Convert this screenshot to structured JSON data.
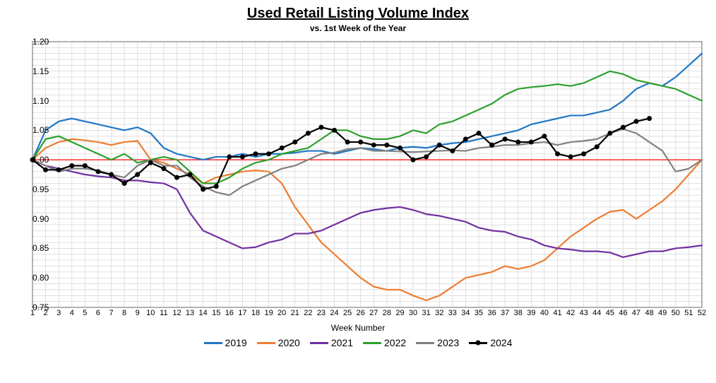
{
  "title": "Used Retail Listing Volume Index",
  "subtitle": "vs. 1st Week of the Year",
  "xlabel": "Week Number",
  "chart": {
    "type": "line",
    "xlim": [
      1,
      52
    ],
    "ylim": [
      0.75,
      1.2
    ],
    "ytick_step": 0.05,
    "xtick_step": 1,
    "background_color": "#ffffff",
    "grid_color": "#d9d9d9",
    "axis_color": "#7f7f7f",
    "baseline_color": "#ff0000",
    "line_width": 2.2,
    "marker_radius": 3.5,
    "title_fontsize": 20,
    "subtitle_fontsize": 12,
    "label_fontsize": 12,
    "tick_fontsize": 12,
    "series": [
      {
        "name": "2019",
        "color": "#1f77c4",
        "markers": false,
        "values": [
          1.0,
          1.05,
          1.065,
          1.07,
          1.065,
          1.06,
          1.055,
          1.05,
          1.055,
          1.045,
          1.02,
          1.01,
          1.005,
          1.0,
          1.005,
          1.005,
          1.01,
          1.005,
          1.01,
          1.01,
          1.012,
          1.015,
          1.015,
          1.01,
          1.015,
          1.02,
          1.018,
          1.015,
          1.02,
          1.022,
          1.02,
          1.025,
          1.028,
          1.03,
          1.035,
          1.04,
          1.045,
          1.05,
          1.06,
          1.065,
          1.07,
          1.075,
          1.075,
          1.08,
          1.085,
          1.1,
          1.12,
          1.13,
          1.125,
          1.14,
          1.16,
          1.18
        ]
      },
      {
        "name": "2020",
        "color": "#ed7d31",
        "markers": false,
        "values": [
          1.0,
          1.02,
          1.03,
          1.035,
          1.033,
          1.03,
          1.025,
          1.03,
          1.032,
          1.0,
          0.995,
          0.985,
          0.975,
          0.96,
          0.97,
          0.975,
          0.98,
          0.982,
          0.98,
          0.96,
          0.92,
          0.89,
          0.86,
          0.84,
          0.82,
          0.8,
          0.785,
          0.78,
          0.78,
          0.77,
          0.762,
          0.77,
          0.785,
          0.8,
          0.805,
          0.81,
          0.82,
          0.815,
          0.82,
          0.83,
          0.85,
          0.87,
          0.885,
          0.9,
          0.912,
          0.915,
          0.9,
          0.915,
          0.93,
          0.95,
          0.975,
          1.0
        ]
      },
      {
        "name": "2021",
        "color": "#7030a0",
        "markers": false,
        "values": [
          1.0,
          0.99,
          0.985,
          0.98,
          0.975,
          0.972,
          0.97,
          0.965,
          0.965,
          0.962,
          0.96,
          0.95,
          0.91,
          0.88,
          0.87,
          0.86,
          0.85,
          0.852,
          0.86,
          0.865,
          0.875,
          0.875,
          0.88,
          0.89,
          0.9,
          0.91,
          0.915,
          0.918,
          0.92,
          0.915,
          0.908,
          0.905,
          0.9,
          0.895,
          0.885,
          0.88,
          0.878,
          0.87,
          0.865,
          0.855,
          0.85,
          0.848,
          0.845,
          0.845,
          0.843,
          0.835,
          0.84,
          0.845,
          0.845,
          0.85,
          0.852,
          0.855
        ]
      },
      {
        "name": "2022",
        "color": "#2ca02c",
        "markers": false,
        "values": [
          1.0,
          1.035,
          1.04,
          1.03,
          1.02,
          1.01,
          1.0,
          1.01,
          0.995,
          1.0,
          1.005,
          1.0,
          0.98,
          0.96,
          0.96,
          0.97,
          0.985,
          0.995,
          1.0,
          1.01,
          1.015,
          1.02,
          1.035,
          1.05,
          1.05,
          1.04,
          1.035,
          1.035,
          1.04,
          1.05,
          1.045,
          1.06,
          1.065,
          1.075,
          1.085,
          1.095,
          1.11,
          1.12,
          1.123,
          1.125,
          1.128,
          1.125,
          1.13,
          1.14,
          1.15,
          1.145,
          1.135,
          1.13,
          1.125,
          1.12,
          1.11,
          1.1
        ]
      },
      {
        "name": "2023",
        "color": "#808080",
        "markers": false,
        "values": [
          1.0,
          0.99,
          0.98,
          0.985,
          0.985,
          0.982,
          0.975,
          0.97,
          0.99,
          1.0,
          0.99,
          0.99,
          0.97,
          0.955,
          0.945,
          0.94,
          0.955,
          0.965,
          0.975,
          0.985,
          0.99,
          1.0,
          1.01,
          1.012,
          1.018,
          1.02,
          1.015,
          1.015,
          1.014,
          1.013,
          1.014,
          1.015,
          1.016,
          1.015,
          1.02,
          1.022,
          1.025,
          1.025,
          1.028,
          1.03,
          1.025,
          1.03,
          1.032,
          1.035,
          1.045,
          1.052,
          1.045,
          1.03,
          1.015,
          0.98,
          0.985,
          1.0
        ]
      },
      {
        "name": "2024",
        "color": "#000000",
        "markers": true,
        "values": [
          1.0,
          0.983,
          0.983,
          0.99,
          0.99,
          0.98,
          0.975,
          0.96,
          0.975,
          0.995,
          0.985,
          0.97,
          0.975,
          0.95,
          0.955,
          1.005,
          1.005,
          1.01,
          1.01,
          1.02,
          1.03,
          1.045,
          1.055,
          1.05,
          1.03,
          1.03,
          1.025,
          1.025,
          1.02,
          1.0,
          1.005,
          1.025,
          1.015,
          1.035,
          1.045,
          1.025,
          1.035,
          1.03,
          1.03,
          1.04,
          1.01,
          1.005,
          1.01,
          1.022,
          1.045,
          1.055,
          1.065,
          1.07
        ]
      }
    ]
  },
  "legend_items": [
    {
      "label": "2019",
      "color": "#1f77c4",
      "markers": false
    },
    {
      "label": "2020",
      "color": "#ed7d31",
      "markers": false
    },
    {
      "label": "2021",
      "color": "#7030a0",
      "markers": false
    },
    {
      "label": "2022",
      "color": "#2ca02c",
      "markers": false
    },
    {
      "label": "2023",
      "color": "#808080",
      "markers": false
    },
    {
      "label": "2024",
      "color": "#000000",
      "markers": true
    }
  ]
}
